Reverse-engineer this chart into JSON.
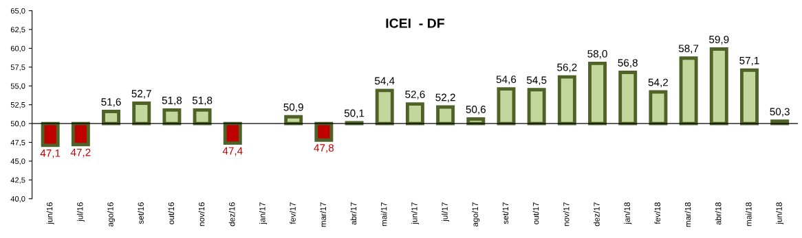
{
  "chart_data": {
    "type": "bar",
    "title": "ICEI  - DF",
    "categories": [
      "jun/16",
      "jul/16",
      "ago/16",
      "set/16",
      "out/16",
      "nov/16",
      "dez/16",
      "jan/17",
      "fev/17",
      "mar/17",
      "abr/17",
      "mai/17",
      "jun/17",
      "jul/17",
      "ago/17",
      "set/17",
      "out/17",
      "nov/17",
      "dez/17",
      "jan/18",
      "fev/18",
      "mar/18",
      "abr/18",
      "mai/18",
      "jun/18"
    ],
    "base": [
      50,
      50,
      50,
      50,
      50,
      50,
      50,
      null,
      50,
      50,
      50,
      50,
      50,
      50,
      50,
      50,
      50,
      50,
      50,
      50,
      50,
      50,
      50,
      50,
      50
    ],
    "values": [
      -2.9,
      -2.8,
      1.6,
      2.7,
      1.8,
      1.8,
      -2.6,
      null,
      0.9,
      -2.2,
      0.1,
      4.4,
      2.6,
      2.2,
      0.6,
      4.6,
      4.5,
      6.2,
      8.0,
      6.8,
      4.2,
      8.7,
      9.9,
      7.1,
      0.3
    ],
    "value_labels": [
      "47,1",
      "47,2",
      "51,6",
      "52,7",
      "51,8",
      "51,8",
      "47,4",
      null,
      "50,9",
      "47,8",
      "50,1",
      "54,4",
      "52,6",
      "52,2",
      "50,6",
      "54,6",
      "54,5",
      "56,2",
      "58,0",
      "56,8",
      "54,2",
      "58,7",
      "59,9",
      "57,1",
      "50,3"
    ],
    "colors": [
      "#c00000",
      "#c00000",
      "#c3d69b",
      "#c3d69b",
      "#c3d69b",
      "#c3d69b",
      "#c00000",
      "#c3d69b",
      "#c3d69b",
      "#c00000",
      "#c3d69b",
      "#c3d69b",
      "#c3d69b",
      "#c3d69b",
      "#c3d69b",
      "#c3d69b",
      "#c3d69b",
      "#c3d69b",
      "#c3d69b",
      "#c3d69b",
      "#c3d69b",
      "#c3d69b",
      "#c3d69b",
      "#c3d69b",
      "#c3d69b"
    ],
    "ylim": [
      40,
      65
    ],
    "yticks": [
      {
        "value": 40,
        "label": "40,0"
      },
      {
        "value": 42.5,
        "label": "42,5"
      },
      {
        "value": 45,
        "label": "45,0"
      },
      {
        "value": 47.5,
        "label": "47,5"
      },
      {
        "value": 50,
        "label": "50,0"
      },
      {
        "value": 52.5,
        "label": "52,5"
      },
      {
        "value": 55,
        "label": "55,0"
      },
      {
        "value": 57.5,
        "label": "57,5"
      },
      {
        "value": 60,
        "label": "60,0"
      },
      {
        "value": 62.5,
        "label": "62,5"
      },
      {
        "value": 65,
        "label": "65,0"
      }
    ],
    "ref_lines": [
      {
        "axis": "y",
        "value": 50,
        "color": "#000000"
      }
    ],
    "grid": false,
    "legend": false
  }
}
